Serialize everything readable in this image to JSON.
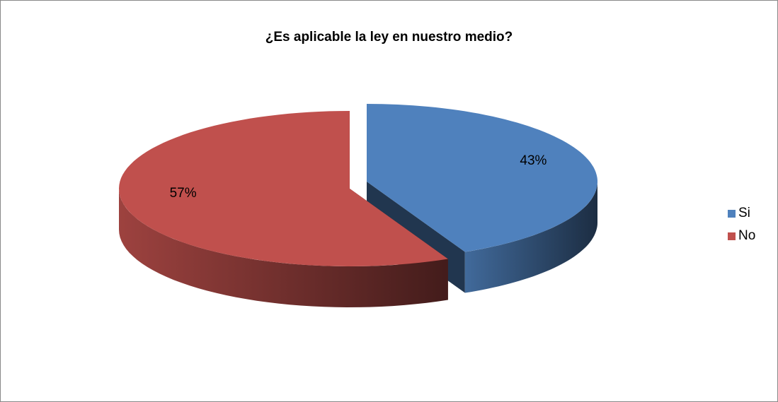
{
  "chart_data": {
    "type": "pie",
    "title": "¿Es aplicable la ley en nuestro medio?",
    "categories": [
      "Si",
      "No"
    ],
    "values": [
      43,
      57
    ],
    "labels": [
      "43%",
      "57%"
    ],
    "colors": [
      "#4F81BD",
      "#C0504D"
    ],
    "legend_position": "right",
    "style": "3d-exploded"
  }
}
